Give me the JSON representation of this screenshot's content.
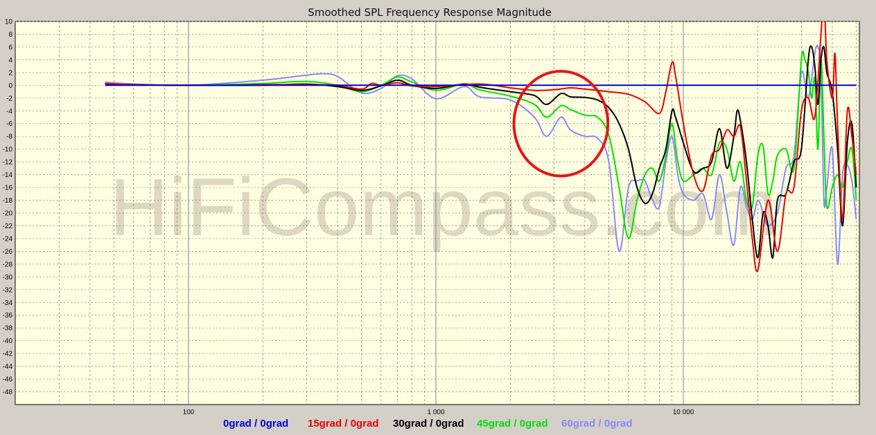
{
  "chart_data": {
    "type": "line",
    "title": "Smoothed SPL Frequency Response Magnitude",
    "watermark": "HiFiCompass.com",
    "xscale": "log",
    "xlim": [
      20,
      54000
    ],
    "ylim": [
      -50,
      10
    ],
    "x_tick_labels": [
      {
        "value": 100,
        "label": "100"
      },
      {
        "value": 1000,
        "label": "1 000"
      },
      {
        "value": 10000,
        "label": "10 000"
      }
    ],
    "y_ticks": [
      10,
      8,
      6,
      4,
      2,
      0,
      -2,
      -4,
      -6,
      -8,
      -10,
      -12,
      -14,
      -16,
      -18,
      -20,
      -22,
      -24,
      -26,
      -28,
      -30,
      -32,
      -34,
      -36,
      -38,
      -40,
      -42,
      -44,
      -46,
      -48
    ],
    "grid": true,
    "legend_position": "bottom",
    "colors": {
      "background": "#d4d0c8",
      "plot_bg": "#ffffe1",
      "grid_minor": "#808080",
      "grid_major": "#8080a0",
      "annotation": "#e41818"
    },
    "annotation": {
      "shape": "ellipse",
      "center_x_hz": 3200,
      "center_y_db": -6,
      "radius_decades": 0.19,
      "radius_db": 8.2,
      "color": "#e41818"
    },
    "series": [
      {
        "name": "0grad / 0grad",
        "color": "#0000d8",
        "points": [
          [
            46,
            0
          ],
          [
            50000,
            0
          ]
        ]
      },
      {
        "name": "15grad / 0grad",
        "color": "#e80000",
        "points": [
          [
            46,
            0.3
          ],
          [
            60,
            0.1
          ],
          [
            100,
            0
          ],
          [
            150,
            0
          ],
          [
            200,
            0.1
          ],
          [
            300,
            0.1
          ],
          [
            400,
            0
          ],
          [
            500,
            -0.6
          ],
          [
            550,
            0.3
          ],
          [
            600,
            0
          ],
          [
            700,
            0.4
          ],
          [
            800,
            -0.1
          ],
          [
            1000,
            -0.2
          ],
          [
            1500,
            0.2
          ],
          [
            2000,
            -0.4
          ],
          [
            2500,
            -0.8
          ],
          [
            3000,
            -0.7
          ],
          [
            3500,
            -0.4
          ],
          [
            4000,
            -0.6
          ],
          [
            5000,
            -1
          ],
          [
            6000,
            -1.4
          ],
          [
            7000,
            -2.6
          ],
          [
            8000,
            -4.4
          ],
          [
            8500,
            -1
          ],
          [
            9000,
            3.6
          ],
          [
            9300,
            1.5
          ],
          [
            10000,
            -6
          ],
          [
            11000,
            -14
          ],
          [
            12000,
            -16.5
          ],
          [
            13000,
            -11
          ],
          [
            14000,
            -10
          ],
          [
            15000,
            -7
          ],
          [
            16000,
            -8
          ],
          [
            17000,
            -6.5
          ],
          [
            18000,
            -15
          ],
          [
            19000,
            -24
          ],
          [
            20000,
            -29
          ],
          [
            22000,
            -18
          ],
          [
            24000,
            -26
          ],
          [
            26000,
            -17
          ],
          [
            28000,
            -16
          ],
          [
            30000,
            -4
          ],
          [
            32000,
            -2
          ],
          [
            34000,
            -5
          ],
          [
            36000,
            8
          ],
          [
            37000,
            14
          ],
          [
            38000,
            4
          ],
          [
            40000,
            -2
          ],
          [
            41000,
            5
          ],
          [
            42000,
            -6
          ],
          [
            44000,
            -21
          ],
          [
            46000,
            -4
          ],
          [
            48000,
            -8
          ],
          [
            50000,
            -14
          ]
        ]
      },
      {
        "name": "30grad / 0grad",
        "color": "#000000",
        "points": [
          [
            46,
            0.2
          ],
          [
            60,
            0.1
          ],
          [
            100,
            0
          ],
          [
            200,
            0
          ],
          [
            300,
            0.2
          ],
          [
            400,
            -0.2
          ],
          [
            500,
            -0.8
          ],
          [
            600,
            -0.1
          ],
          [
            700,
            0.8
          ],
          [
            800,
            0
          ],
          [
            1000,
            -0.5
          ],
          [
            1300,
            0.2
          ],
          [
            1500,
            -0.3
          ],
          [
            2000,
            -1
          ],
          [
            2500,
            -1.6
          ],
          [
            2800,
            -3
          ],
          [
            3200,
            -1.3
          ],
          [
            3500,
            -1.8
          ],
          [
            4000,
            -1.9
          ],
          [
            4500,
            -2.3
          ],
          [
            5000,
            -3.5
          ],
          [
            5500,
            -6
          ],
          [
            6000,
            -10
          ],
          [
            6500,
            -16
          ],
          [
            7000,
            -18.5
          ],
          [
            7500,
            -17
          ],
          [
            8000,
            -13
          ],
          [
            8500,
            -10
          ],
          [
            9000,
            -4
          ],
          [
            9300,
            -5
          ],
          [
            10000,
            -9
          ],
          [
            11000,
            -13.5
          ],
          [
            12000,
            -13
          ],
          [
            13000,
            -12
          ],
          [
            14000,
            -6.8
          ],
          [
            15000,
            -13
          ],
          [
            16000,
            -8
          ],
          [
            16500,
            -4
          ],
          [
            17000,
            -5.5
          ],
          [
            18000,
            -12
          ],
          [
            19000,
            -21
          ],
          [
            20000,
            -27
          ],
          [
            21000,
            -20
          ],
          [
            22000,
            -22
          ],
          [
            23000,
            -27
          ],
          [
            24000,
            -18
          ],
          [
            26000,
            -17
          ],
          [
            28000,
            -12
          ],
          [
            30000,
            -10
          ],
          [
            32000,
            4
          ],
          [
            33000,
            6
          ],
          [
            34000,
            3
          ],
          [
            35000,
            -3
          ],
          [
            36000,
            4
          ],
          [
            37000,
            6
          ],
          [
            38000,
            2
          ],
          [
            40000,
            -1
          ],
          [
            42000,
            -10
          ],
          [
            44000,
            -22
          ],
          [
            46000,
            -9
          ],
          [
            48000,
            -6
          ],
          [
            50000,
            -16
          ]
        ]
      },
      {
        "name": "45grad / 0grad",
        "color": "#00e000",
        "points": [
          [
            46,
            0.3
          ],
          [
            60,
            0.1
          ],
          [
            100,
            0
          ],
          [
            200,
            0.3
          ],
          [
            300,
            0.6
          ],
          [
            400,
            0
          ],
          [
            500,
            -1
          ],
          [
            600,
            0
          ],
          [
            700,
            1.3
          ],
          [
            800,
            0.5
          ],
          [
            1000,
            -0.8
          ],
          [
            1300,
            0.2
          ],
          [
            1500,
            -0.7
          ],
          [
            2000,
            -1.7
          ],
          [
            2500,
            -3
          ],
          [
            2800,
            -5
          ],
          [
            3200,
            -3.2
          ],
          [
            3500,
            -3.8
          ],
          [
            4000,
            -4.7
          ],
          [
            4500,
            -5
          ],
          [
            5000,
            -7.8
          ],
          [
            5500,
            -16
          ],
          [
            6000,
            -24
          ],
          [
            6500,
            -18
          ],
          [
            7000,
            -14
          ],
          [
            7500,
            -13
          ],
          [
            8000,
            -15
          ],
          [
            8500,
            -11
          ],
          [
            9000,
            -6
          ],
          [
            9500,
            -12
          ],
          [
            10000,
            -15
          ],
          [
            11000,
            -14
          ],
          [
            12000,
            -13
          ],
          [
            13000,
            -14
          ],
          [
            14000,
            -9
          ],
          [
            15000,
            -10
          ],
          [
            16000,
            -15
          ],
          [
            17000,
            -12
          ],
          [
            18000,
            -18
          ],
          [
            19000,
            -19
          ],
          [
            20000,
            -11
          ],
          [
            21000,
            -9.5
          ],
          [
            22000,
            -17
          ],
          [
            23000,
            -15
          ],
          [
            24000,
            -11
          ],
          [
            26000,
            -10
          ],
          [
            28000,
            -13
          ],
          [
            30000,
            4
          ],
          [
            31000,
            4
          ],
          [
            32000,
            2
          ],
          [
            33000,
            -2
          ],
          [
            34000,
            1
          ],
          [
            35000,
            -10
          ],
          [
            36000,
            4
          ],
          [
            37000,
            -8
          ],
          [
            38000,
            -19
          ],
          [
            40000,
            -16
          ],
          [
            42000,
            -14
          ],
          [
            44000,
            -16
          ],
          [
            46000,
            -12
          ],
          [
            48000,
            -10
          ],
          [
            50000,
            -18
          ]
        ]
      },
      {
        "name": "60grad / 0grad",
        "color": "#8888ff",
        "points": [
          [
            46,
            0.5
          ],
          [
            60,
            0.2
          ],
          [
            100,
            0
          ],
          [
            200,
            0.8
          ],
          [
            300,
            1.6
          ],
          [
            350,
            1.8
          ],
          [
            400,
            1.4
          ],
          [
            500,
            -1.2
          ],
          [
            600,
            -0.5
          ],
          [
            700,
            1.5
          ],
          [
            800,
            1
          ],
          [
            1000,
            -2.1
          ],
          [
            1300,
            -0.2
          ],
          [
            1500,
            -1.8
          ],
          [
            2000,
            -2.3
          ],
          [
            2500,
            -5
          ],
          [
            2800,
            -8
          ],
          [
            3200,
            -5
          ],
          [
            3500,
            -7
          ],
          [
            4000,
            -8
          ],
          [
            4500,
            -8.3
          ],
          [
            5000,
            -12
          ],
          [
            5500,
            -26
          ],
          [
            6000,
            -16
          ],
          [
            6500,
            -15
          ],
          [
            7000,
            -15
          ],
          [
            7500,
            -18
          ],
          [
            8000,
            -19
          ],
          [
            8500,
            -12
          ],
          [
            9000,
            -8
          ],
          [
            9500,
            -14
          ],
          [
            10000,
            -17
          ],
          [
            11000,
            -18
          ],
          [
            12000,
            -17
          ],
          [
            13000,
            -21
          ],
          [
            14000,
            -14
          ],
          [
            15000,
            -20
          ],
          [
            16000,
            -25
          ],
          [
            17000,
            -16
          ],
          [
            18000,
            -19
          ],
          [
            19000,
            -21
          ],
          [
            20000,
            -18
          ],
          [
            21000,
            -20
          ],
          [
            22000,
            -22
          ],
          [
            24000,
            -20
          ],
          [
            26000,
            -13
          ],
          [
            28000,
            -11
          ],
          [
            30000,
            2
          ],
          [
            32000,
            -2
          ],
          [
            34000,
            5
          ],
          [
            35000,
            6
          ],
          [
            36000,
            2
          ],
          [
            37000,
            -18
          ],
          [
            38000,
            -16
          ],
          [
            40000,
            -10
          ],
          [
            42000,
            -28
          ],
          [
            44000,
            -14
          ],
          [
            46000,
            -12.5
          ],
          [
            48000,
            -15
          ],
          [
            50000,
            -21
          ]
        ]
      }
    ]
  }
}
